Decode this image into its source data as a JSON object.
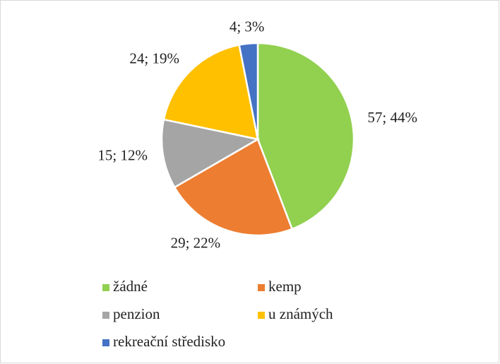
{
  "chart_data": {
    "type": "pie",
    "categories": [
      "žádné",
      "kemp",
      "penzion",
      "u známých",
      "rekreační středisko"
    ],
    "values": [
      57,
      29,
      15,
      24,
      4
    ],
    "value_labels": [
      "57; 44%",
      "29; 22%",
      "15; 12%",
      "24; 19%",
      "4; 3%"
    ],
    "colors": [
      "#92d050",
      "#ed7d31",
      "#a5a5a5",
      "#ffc000",
      "#4472c4"
    ],
    "legend": "bottom"
  }
}
